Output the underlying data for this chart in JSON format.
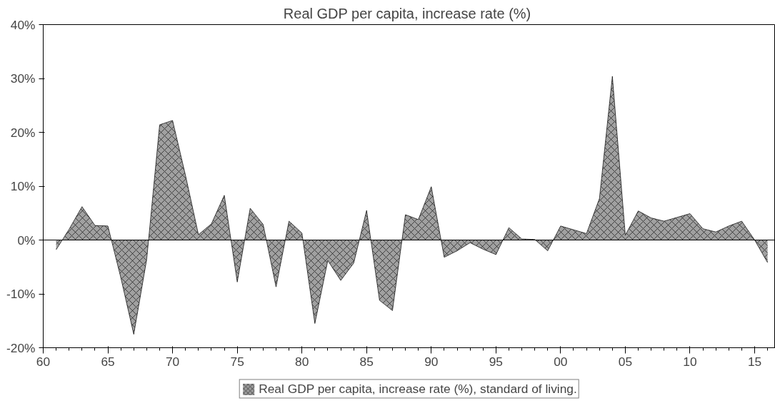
{
  "chart_data": {
    "type": "area",
    "title": "Real GDP per capita,  increase rate (%)",
    "x": [
      1961,
      1962,
      1963,
      1964,
      1965,
      1966,
      1967,
      1968,
      1969,
      1970,
      1971,
      1972,
      1973,
      1974,
      1975,
      1976,
      1977,
      1978,
      1979,
      1980,
      1981,
      1982,
      1983,
      1984,
      1985,
      1986,
      1987,
      1988,
      1989,
      1990,
      1991,
      1992,
      1993,
      1994,
      1995,
      1996,
      1997,
      1998,
      1999,
      2000,
      2001,
      2002,
      2003,
      2004,
      2005,
      2006,
      2007,
      2008,
      2009,
      2010,
      2011,
      2012,
      2013,
      2014,
      2015,
      2016
    ],
    "series": [
      {
        "name": "Real GDP per capita, increase rate (%), standard of living.",
        "color": "#a0a0a0",
        "values": [
          -1.8,
          2.0,
          6.2,
          2.7,
          2.6,
          -7,
          -17.5,
          -3.6,
          21.4,
          22.2,
          12,
          1.0,
          3.0,
          8.3,
          -7.8,
          5.9,
          2.9,
          -8.7,
          3.5,
          1.3,
          -15.5,
          -3.8,
          -7.5,
          -4.3,
          5.5,
          -11.2,
          -13.1,
          4.7,
          3.8,
          9.9,
          -3.2,
          -2.0,
          -0.5,
          -1.7,
          -2.7,
          2.3,
          0.2,
          0.1,
          -2.0,
          2.6,
          1.9,
          1.2,
          7.7,
          30.4,
          0.9,
          5.4,
          4.1,
          3.5,
          4.2,
          4.9,
          2.1,
          1.5,
          2.6,
          3.5,
          0.0,
          -4.2
        ]
      }
    ],
    "xlim": [
      1960,
      2016.6
    ],
    "xticks": [
      {
        "value": 1960,
        "label": "60"
      },
      {
        "value": 1965,
        "label": "65"
      },
      {
        "value": 1970,
        "label": "70"
      },
      {
        "value": 1975,
        "label": "75"
      },
      {
        "value": 1980,
        "label": "80"
      },
      {
        "value": 1985,
        "label": "85"
      },
      {
        "value": 1990,
        "label": "90"
      },
      {
        "value": 1995,
        "label": "95"
      },
      {
        "value": 2000,
        "label": "00"
      },
      {
        "value": 2005,
        "label": "05"
      },
      {
        "value": 2010,
        "label": "10"
      },
      {
        "value": 2015,
        "label": "15"
      }
    ],
    "ylim": [
      -20,
      40
    ],
    "yticks": [
      {
        "value": -20,
        "label": "-20%"
      },
      {
        "value": -10,
        "label": "-10%"
      },
      {
        "value": 0,
        "label": "0%"
      },
      {
        "value": 10,
        "label": "10%"
      },
      {
        "value": 20,
        "label": "20%"
      },
      {
        "value": 30,
        "label": "30%"
      },
      {
        "value": 40,
        "label": "40%"
      }
    ],
    "ref_lines": [
      {
        "axis": "y",
        "value": 0
      }
    ],
    "grid": false,
    "legend": "bottom"
  }
}
